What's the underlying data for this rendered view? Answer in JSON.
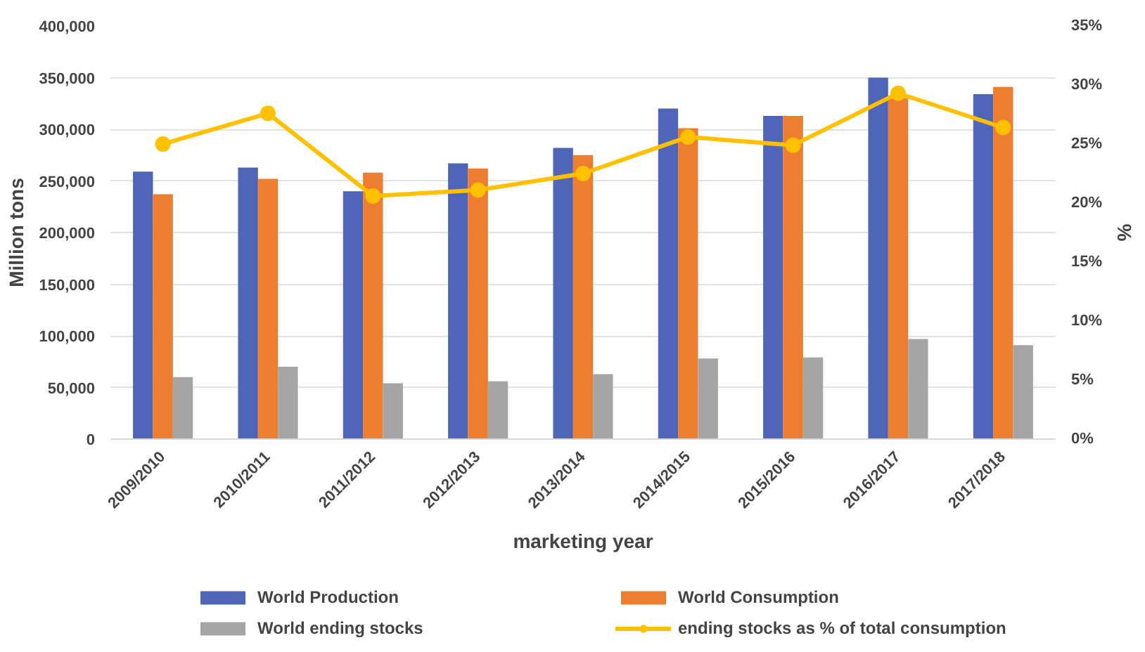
{
  "chart_data": {
    "type": "bar",
    "xlabel": "marketing year",
    "ylabel": "Million tons",
    "y2label": "%",
    "categories": [
      "2009/2010",
      "2010/2011",
      "2011/2012",
      "2012/2013",
      "2013/2014",
      "2014/2015",
      "2015/2016",
      "2016/2017",
      "2017/2018"
    ],
    "series": [
      {
        "name": "World Production",
        "color": "#4e65b8",
        "values": [
          259000,
          263000,
          240000,
          267000,
          282000,
          320000,
          313000,
          350000,
          334000
        ]
      },
      {
        "name": "World Consumption",
        "color": "#ed7d31",
        "values": [
          237000,
          252000,
          258000,
          262000,
          275000,
          301000,
          313000,
          330000,
          341000
        ]
      },
      {
        "name": "World ending stocks",
        "color": "#a5a5a5",
        "values": [
          60000,
          70000,
          54000,
          56000,
          63000,
          78000,
          79000,
          97000,
          91000
        ]
      },
      {
        "name": "ending stocks as % of total consumption",
        "type": "line",
        "axis": "y2",
        "color": "#ffc000",
        "marker": "circle",
        "values": [
          25.0,
          27.6,
          20.6,
          21.1,
          22.5,
          25.6,
          24.9,
          29.3,
          26.4
        ]
      }
    ],
    "ylim": [
      0,
      400000
    ],
    "yticks": [
      {
        "value": 0,
        "label": "0"
      },
      {
        "value": 50000,
        "label": "50,000"
      },
      {
        "value": 100000,
        "label": "100,000"
      },
      {
        "value": 150000,
        "label": "150,000"
      },
      {
        "value": 200000,
        "label": "200,000"
      },
      {
        "value": 250000,
        "label": "250,000"
      },
      {
        "value": 300000,
        "label": "300,000"
      },
      {
        "value": 350000,
        "label": "350,000"
      },
      {
        "value": 400000,
        "label": "400,000"
      }
    ],
    "y2lim": [
      0,
      35
    ],
    "y2ticks": [
      {
        "value": 0,
        "label": "0%"
      },
      {
        "value": 5,
        "label": "5%"
      },
      {
        "value": 10,
        "label": "10%"
      },
      {
        "value": 15,
        "label": "15%"
      },
      {
        "value": 20,
        "label": "20%"
      },
      {
        "value": 25,
        "label": "25%"
      },
      {
        "value": 30,
        "label": "30%"
      },
      {
        "value": 35,
        "label": "35%"
      }
    ],
    "grid": "y",
    "legend": "bottom"
  }
}
